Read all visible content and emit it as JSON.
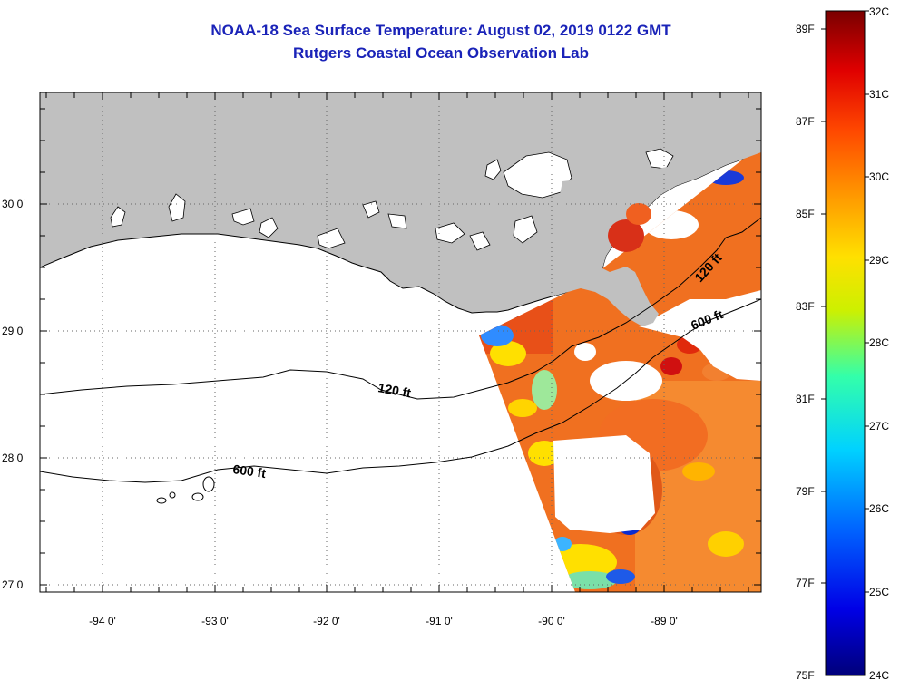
{
  "header": {
    "title": "NOAA-18 Sea Surface Temperature:  August 02, 2019 0122 GMT",
    "subtitle": "Rutgers Coastal Ocean Observation Lab"
  },
  "map": {
    "lon_labels": [
      "-94 0'",
      "-93 0'",
      "-92 0'",
      "-91 0'",
      "-90 0'",
      "-89 0'"
    ],
    "lat_labels": [
      "30 0'",
      "29 0'",
      "28 0'",
      "27 0'"
    ],
    "contour_labels": {
      "c120_west": "120 ft",
      "c120_east": "120 ft",
      "c600_west": "600 ft",
      "c600_east": "600 ft"
    },
    "colors": {
      "land": "#c0c0c0",
      "no_data": "#ffffff"
    }
  },
  "colorbar": {
    "fahrenheit": [
      "89F",
      "87F",
      "85F",
      "83F",
      "81F",
      "79F",
      "77F",
      "75F"
    ],
    "celsius": [
      "32C",
      "31C",
      "30C",
      "29C",
      "28C",
      "27C",
      "26C",
      "25C",
      "24C"
    ]
  }
}
